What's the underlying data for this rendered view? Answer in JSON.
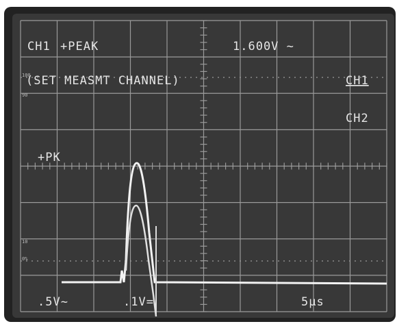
{
  "readout": {
    "channel": "CH1",
    "mode": "+PEAK",
    "measurement": "1.600V ~"
  },
  "menu": {
    "prompt": "(SET MEASMT CHANNEL)",
    "options": [
      "CH1",
      "CH2"
    ]
  },
  "marker": "+PK",
  "graticule_labels": [
    "100",
    "90",
    "10",
    "0%"
  ],
  "settings": {
    "ch1_scale": ".5V~",
    "ch2_scale": ".1V=",
    "timebase": "5µs"
  }
}
